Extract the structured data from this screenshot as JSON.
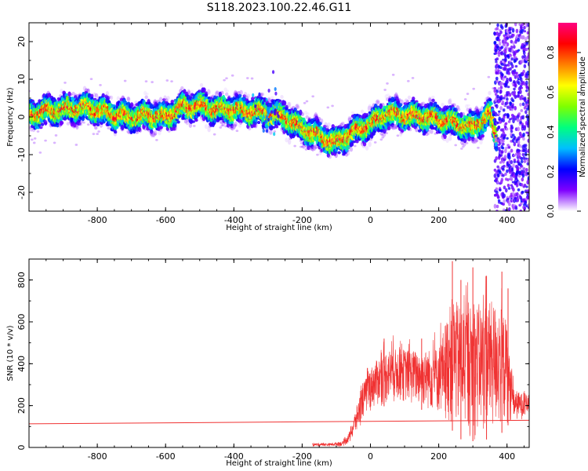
{
  "title": "S118.2023.100.22.46.G11",
  "chart_data": [
    {
      "type": "heatmap",
      "xlabel": "Height of straight line (km)",
      "ylabel": "Frequency (Hz)",
      "xlim": [
        -1000,
        465
      ],
      "ylim": [
        -25,
        25
      ],
      "xticks": [
        -800,
        -600,
        -400,
        -200,
        0,
        200,
        400
      ],
      "yticks": [
        -20,
        -10,
        0,
        10,
        20
      ],
      "colorbar": {
        "label": "Normalized spectral amplitude",
        "range": [
          0.0,
          0.95
        ],
        "ticks": [
          "0.0",
          "0.2",
          "0.4",
          "0.6",
          "0.8"
        ],
        "colormap": [
          "#ffffff",
          "#7f00ff",
          "#0000ff",
          "#00bfff",
          "#00ff7f",
          "#7fff00",
          "#ffff00",
          "#ff7f00",
          "#ff0000",
          "#ff007f"
        ]
      },
      "ridge": {
        "x": [
          -1000,
          -950,
          -900,
          -850,
          -800,
          -750,
          -700,
          -650,
          -600,
          -550,
          -500,
          -450,
          -400,
          -350,
          -300,
          -250,
          -200,
          -150,
          -100,
          -50,
          0,
          50,
          100,
          150,
          200,
          250,
          300,
          350,
          370
        ],
        "frequency": [
          0.5,
          1.5,
          2.0,
          2.5,
          2.0,
          0.5,
          0.0,
          0.5,
          0.0,
          2.5,
          3.0,
          2.0,
          2.0,
          1.5,
          1.0,
          0.0,
          -3.0,
          -5.0,
          -7.0,
          -4.0,
          -2.0,
          1.0,
          0.5,
          0.0,
          -0.5,
          -1.5,
          -3.0,
          1.0,
          -6.0
        ]
      }
    },
    {
      "type": "line",
      "xlabel": "Height of straight line (km)",
      "ylabel": "SNR (10 * v/v)",
      "xlim": [
        -1000,
        465
      ],
      "ylim": [
        0,
        900
      ],
      "xticks": [
        -800,
        -600,
        -400,
        -200,
        0,
        200,
        400
      ],
      "yticks": [
        0,
        200,
        400,
        600,
        800
      ],
      "line_color": "#f03232",
      "baseline": {
        "x": [
          -1000,
          465
        ],
        "y": [
          113,
          130
        ]
      },
      "envelope": {
        "x": [
          -170,
          -120,
          -80,
          -60,
          -40,
          -20,
          0,
          20,
          50,
          100,
          150,
          200,
          220,
          240,
          260,
          300,
          350,
          380,
          400,
          410,
          420,
          440,
          465
        ],
        "upper": [
          20,
          20,
          30,
          80,
          200,
          310,
          380,
          420,
          470,
          470,
          460,
          480,
          600,
          720,
          680,
          680,
          700,
          680,
          600,
          380,
          280,
          260,
          250
        ],
        "lower": [
          5,
          5,
          5,
          20,
          60,
          140,
          170,
          190,
          200,
          210,
          180,
          150,
          120,
          80,
          40,
          30,
          40,
          60,
          100,
          120,
          120,
          130,
          150
        ],
        "peaks": [
          {
            "x": 40,
            "y": 520
          },
          {
            "x": 150,
            "y": 520
          },
          {
            "x": 240,
            "y": 890
          },
          {
            "x": 265,
            "y": 800
          },
          {
            "x": 300,
            "y": 860
          },
          {
            "x": 340,
            "y": 820
          },
          {
            "x": 385,
            "y": 840
          },
          {
            "x": 403,
            "y": 760
          }
        ]
      }
    }
  ]
}
